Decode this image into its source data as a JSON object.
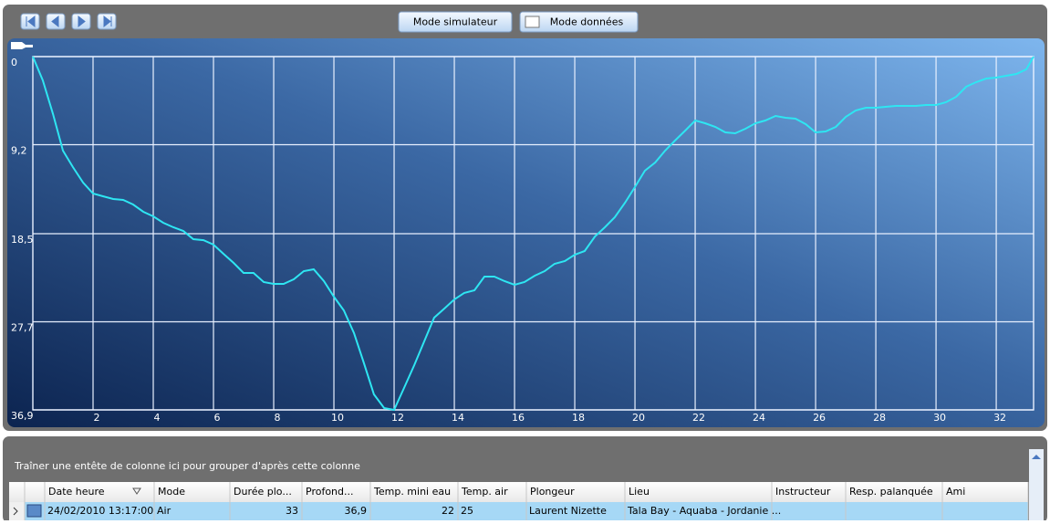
{
  "toolbar": {
    "buttons": [
      "Mode simulateur",
      "Mode données"
    ]
  },
  "chart_data": {
    "type": "line",
    "x": [
      0,
      0.33,
      0.67,
      1,
      1.33,
      1.67,
      2,
      2.33,
      2.67,
      3,
      3.33,
      3.67,
      4,
      4.33,
      4.67,
      5,
      5.33,
      5.67,
      6,
      6.33,
      6.67,
      7,
      7.33,
      7.67,
      8,
      8.33,
      8.67,
      9,
      9.33,
      9.67,
      10,
      10.33,
      10.67,
      11,
      11.33,
      11.67,
      12,
      12.33,
      12.67,
      13,
      13.33,
      13.67,
      14,
      14.33,
      14.67,
      15,
      15.33,
      15.67,
      16,
      16.33,
      16.67,
      17,
      17.33,
      17.67,
      18,
      18.33,
      18.67,
      19,
      19.33,
      19.67,
      20,
      20.33,
      20.67,
      21,
      21.33,
      21.67,
      22,
      22.33,
      22.67,
      23,
      23.33,
      23.67,
      24,
      24.33,
      24.67,
      25,
      25.33,
      25.67,
      26,
      26.33,
      26.67,
      27,
      27.33,
      27.67,
      28,
      28.33,
      28.67,
      29,
      29.33,
      29.67,
      30,
      30.33,
      30.67,
      31,
      31.33,
      31.67,
      32,
      32.33,
      32.67,
      33,
      33.24
    ],
    "series": [
      {
        "color": "#2ee6f2",
        "values": [
          0,
          2.48,
          6,
          9.82,
          11.54,
          13.16,
          14.3,
          14.59,
          14.87,
          14.97,
          15.45,
          16.21,
          16.69,
          17.35,
          17.83,
          18.21,
          19.07,
          19.17,
          19.64,
          20.6,
          21.55,
          22.6,
          22.6,
          23.55,
          23.74,
          23.74,
          23.26,
          22.41,
          22.22,
          23.46,
          25.08,
          26.51,
          28.89,
          32.04,
          35.28,
          36.71,
          36.9,
          34.61,
          32.23,
          29.75,
          27.27,
          26.32,
          25.36,
          24.69,
          24.41,
          22.98,
          22.98,
          23.46,
          23.84,
          23.55,
          22.88,
          22.41,
          21.64,
          21.36,
          20.69,
          20.31,
          18.78,
          17.83,
          16.78,
          15.26,
          13.63,
          11.92,
          11.06,
          9.82,
          8.77,
          7.72,
          6.67,
          6.96,
          7.34,
          7.91,
          8.01,
          7.53,
          6.96,
          6.67,
          6.2,
          6.39,
          6.48,
          7.06,
          7.91,
          7.82,
          7.34,
          6.29,
          5.63,
          5.34,
          5.34,
          5.24,
          5.15,
          5.15,
          5.15,
          5.05,
          5.05,
          4.77,
          4.2,
          3.15,
          2.67,
          2.29,
          2.19,
          2,
          1.81,
          1.33,
          0
        ]
      }
    ],
    "xlim": [
      0,
      33.24
    ],
    "xticks": [
      2,
      4,
      6,
      8,
      10,
      12,
      14,
      16,
      18,
      20,
      22,
      24,
      26,
      28,
      30,
      32
    ],
    "ylim": [
      36.9,
      0
    ],
    "yticks": [
      0,
      {
        "value": 9.2,
        "label": "9,2"
      },
      {
        "value": 18.5,
        "label": "18,5"
      },
      {
        "value": 27.7,
        "label": "27,7"
      },
      {
        "value": 36.9,
        "label": "36,9"
      }
    ],
    "grid": true
  },
  "grid": {
    "group_hint": "Traîner une entête de colonne ici pour grouper d'après cette colonne",
    "columns": [
      "Date heure",
      "Mode",
      "Durée plo...",
      "Profond...",
      "Temp. mini eau",
      "Temp. air",
      "Plongeur",
      "Lieu",
      "Instructeur",
      "Resp. palanquée",
      "Ami"
    ],
    "rows": [
      [
        "24/02/2010 13:17:00",
        "Air",
        "33",
        "36,9",
        "22",
        "25",
        "Laurent Nizette",
        "Tala Bay - Aquaba - Jordanie ..."
      ]
    ]
  }
}
